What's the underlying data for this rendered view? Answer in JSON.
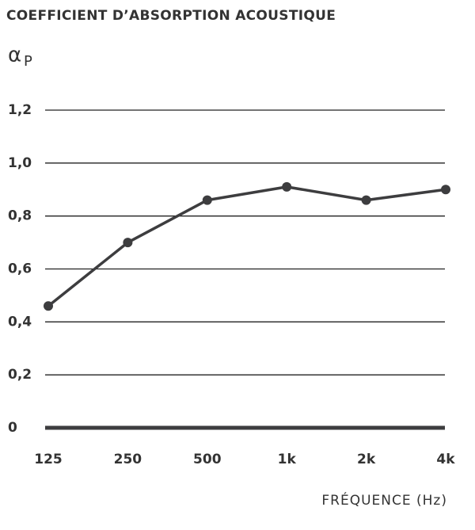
{
  "chart_data": {
    "type": "line",
    "title": "COEFFICIENT D’ABSORPTION ACOUSTIQUE",
    "y_label": "α",
    "y_label_sub": "P",
    "x_label": "FRÉQUENCE (Hz)",
    "categories": [
      "125",
      "250",
      "500",
      "1k",
      "2k",
      "4k"
    ],
    "values": [
      0.46,
      0.7,
      0.86,
      0.91,
      0.86,
      0.9
    ],
    "color": "#3d3d3f",
    "ylim": [
      0,
      1.2
    ],
    "yticks": [
      0,
      {
        "value": 0.2,
        "label": "0,2"
      },
      {
        "value": 0.4,
        "label": "0,4"
      },
      {
        "value": 0.6,
        "label": "0,6"
      },
      {
        "value": 0.8,
        "label": "0,8"
      },
      {
        "value": 1.0,
        "label": "1,0"
      },
      {
        "value": 1.2,
        "label": "1,2"
      }
    ],
    "grid": true
  }
}
